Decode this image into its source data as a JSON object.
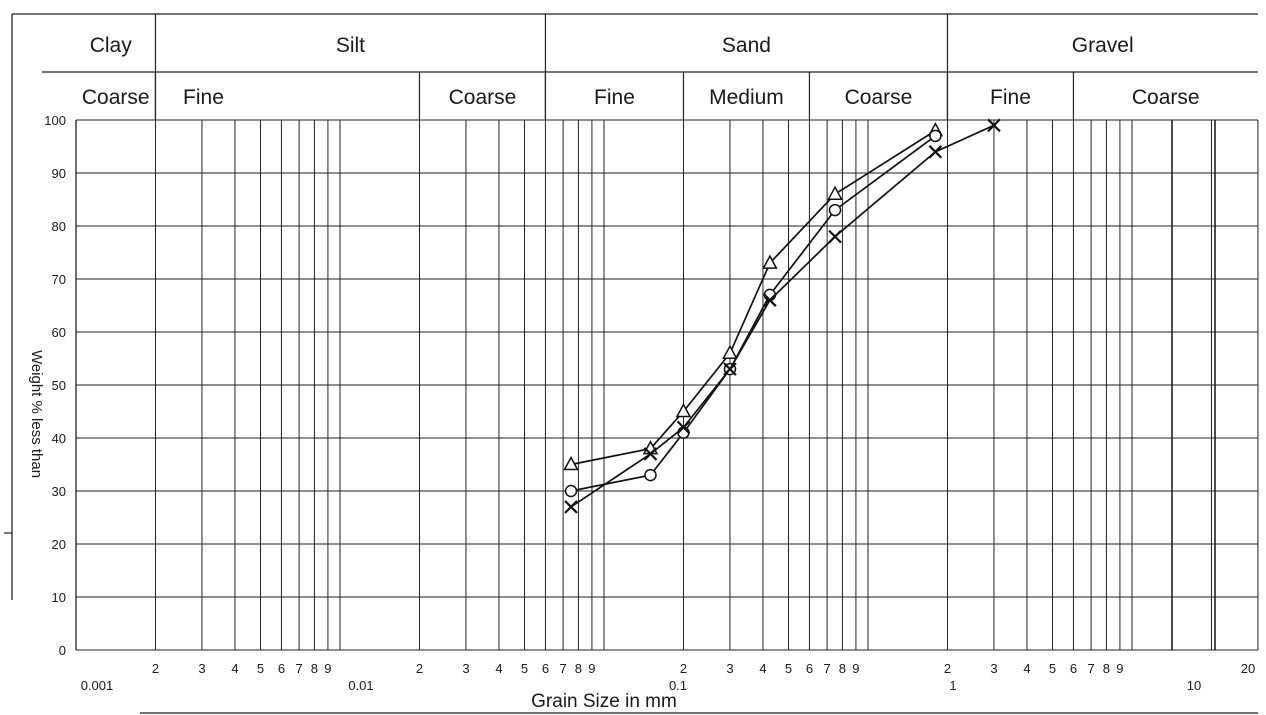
{
  "chart_data": {
    "type": "line",
    "xscale": "log",
    "xlim": [
      0.001,
      20
    ],
    "ylim": [
      0,
      100
    ],
    "grid": true,
    "xlabel": "Grain Size in mm",
    "ylabel": "Weight % less than",
    "y_ticks": [
      "0",
      "10",
      "20",
      "30",
      "40",
      "50",
      "60",
      "70",
      "80",
      "90",
      "100"
    ],
    "x_ticks": [
      {
        "label": "0.001",
        "x": 0.001,
        "major": true
      },
      {
        "label": "2",
        "x": 0.002
      },
      {
        "label": "3",
        "x": 0.003
      },
      {
        "label": "4",
        "x": 0.004
      },
      {
        "label": "5",
        "x": 0.005
      },
      {
        "label": "6",
        "x": 0.006
      },
      {
        "label": "7",
        "x": 0.007
      },
      {
        "label": "8",
        "x": 0.008
      },
      {
        "label": "9",
        "x": 0.009
      },
      {
        "label": "0.01",
        "x": 0.01,
        "major": true
      },
      {
        "label": "2",
        "x": 0.02
      },
      {
        "label": "3",
        "x": 0.03
      },
      {
        "label": "4",
        "x": 0.04
      },
      {
        "label": "5",
        "x": 0.05
      },
      {
        "label": "6",
        "x": 0.06
      },
      {
        "label": "7",
        "x": 0.07
      },
      {
        "label": "8",
        "x": 0.08
      },
      {
        "label": "9",
        "x": 0.09
      },
      {
        "label": "0.1",
        "x": 0.1,
        "major": true
      },
      {
        "label": "2",
        "x": 0.2
      },
      {
        "label": "3",
        "x": 0.3
      },
      {
        "label": "4",
        "x": 0.4
      },
      {
        "label": "5",
        "x": 0.5
      },
      {
        "label": "6",
        "x": 0.6
      },
      {
        "label": "7",
        "x": 0.7
      },
      {
        "label": "8",
        "x": 0.8
      },
      {
        "label": "9",
        "x": 0.9
      },
      {
        "label": "1",
        "x": 1,
        "major": true
      },
      {
        "label": "2",
        "x": 2
      },
      {
        "label": "3",
        "x": 3
      },
      {
        "label": "4",
        "x": 4
      },
      {
        "label": "5",
        "x": 5
      },
      {
        "label": "6",
        "x": 6
      },
      {
        "label": "7",
        "x": 7
      },
      {
        "label": "8",
        "x": 8
      },
      {
        "label": "9",
        "x": 9
      },
      {
        "label": "10",
        "x": 10,
        "major": true
      },
      {
        "label": "20",
        "x": 20
      }
    ],
    "classification": {
      "main": [
        {
          "label": "Clay",
          "from": 0.001,
          "to": 0.002
        },
        {
          "label": "Silt",
          "from": 0.002,
          "to": 0.06
        },
        {
          "label": "Sand",
          "from": 0.06,
          "to": 2
        },
        {
          "label": "Gravel",
          "from": 2,
          "to": 20
        }
      ],
      "sub": [
        {
          "label": "Coarse",
          "from": 0.001,
          "to": 0.002
        },
        {
          "label": "Fine",
          "from": 0.002,
          "to": 0.02
        },
        {
          "label": "Coarse",
          "from": 0.02,
          "to": 0.06
        },
        {
          "label": "Fine",
          "from": 0.06,
          "to": 0.2
        },
        {
          "label": "Medium",
          "from": 0.2,
          "to": 0.6
        },
        {
          "label": "Coarse",
          "from": 0.6,
          "to": 2
        },
        {
          "label": "Fine",
          "from": 2,
          "to": 6
        },
        {
          "label": "Coarse",
          "from": 6,
          "to": 20
        }
      ]
    },
    "series": [
      {
        "marker": "triangle",
        "x": [
          0.075,
          0.15,
          0.2,
          0.3,
          0.425,
          0.75,
          1.8
        ],
        "y": [
          35,
          38,
          45,
          56,
          73,
          86,
          98
        ]
      },
      {
        "marker": "circle",
        "x": [
          0.075,
          0.15,
          0.2,
          0.3,
          0.425,
          0.75,
          1.8
        ],
        "y": [
          30,
          33,
          41,
          53,
          67,
          83,
          97
        ]
      },
      {
        "marker": "cross",
        "x": [
          0.075,
          0.15,
          0.2,
          0.3,
          0.425,
          0.75,
          1.8,
          3.0
        ],
        "y": [
          27,
          37,
          42,
          53,
          66,
          78,
          94,
          99
        ]
      }
    ]
  }
}
